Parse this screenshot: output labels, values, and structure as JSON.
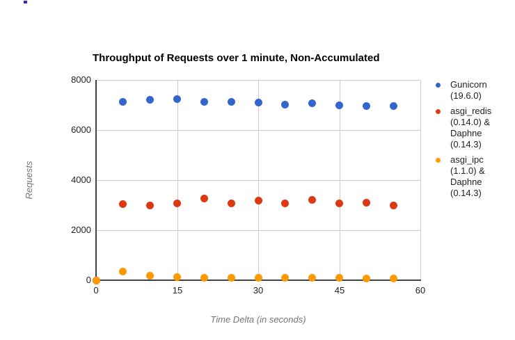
{
  "artifact": {
    "color": "#2b2bd6"
  },
  "chart_data": {
    "type": "scatter",
    "title": "Throughput of Requests over 1 minute, Non-Accumulated",
    "xlabel": "Time Delta (in seconds)",
    "ylabel": "Requests",
    "xlim": [
      0,
      60
    ],
    "ylim": [
      0,
      8000
    ],
    "xticks": [
      0,
      15,
      30,
      45,
      60
    ],
    "yticks": [
      0,
      2000,
      4000,
      6000,
      8000
    ],
    "grid": true,
    "legend_position": "right",
    "x": [
      0,
      5,
      10,
      15,
      20,
      25,
      30,
      35,
      40,
      45,
      50,
      55
    ],
    "series": [
      {
        "name": "Gunicorn (19.6.0)",
        "legend_lines": [
          "Gunicorn",
          "(19.6.0)"
        ],
        "color": "#3366CC",
        "values": [
          0,
          7120,
          7195,
          7230,
          7120,
          7120,
          7090,
          7010,
          7075,
          6980,
          6955,
          6945
        ]
      },
      {
        "name": "asgi_redis (0.14.0) & Daphne (0.14.3)",
        "legend_lines": [
          "asgi_redis",
          "(0.14.0) &",
          "Daphne",
          "(0.14.3)"
        ],
        "color": "#DC3912",
        "values": [
          0,
          3030,
          2980,
          3065,
          3260,
          3065,
          3185,
          3075,
          3205,
          3065,
          3090,
          2980
        ]
      },
      {
        "name": "asgi_ipc (1.1.0) & Daphne (0.14.3)",
        "legend_lines": [
          "asgi_ipc",
          "(1.1.0) &",
          "Daphne",
          "(0.14.3)"
        ],
        "color": "#FF9900",
        "values": [
          0,
          350,
          175,
          130,
          110,
          100,
          100,
          90,
          100,
          90,
          75,
          75
        ]
      }
    ]
  }
}
